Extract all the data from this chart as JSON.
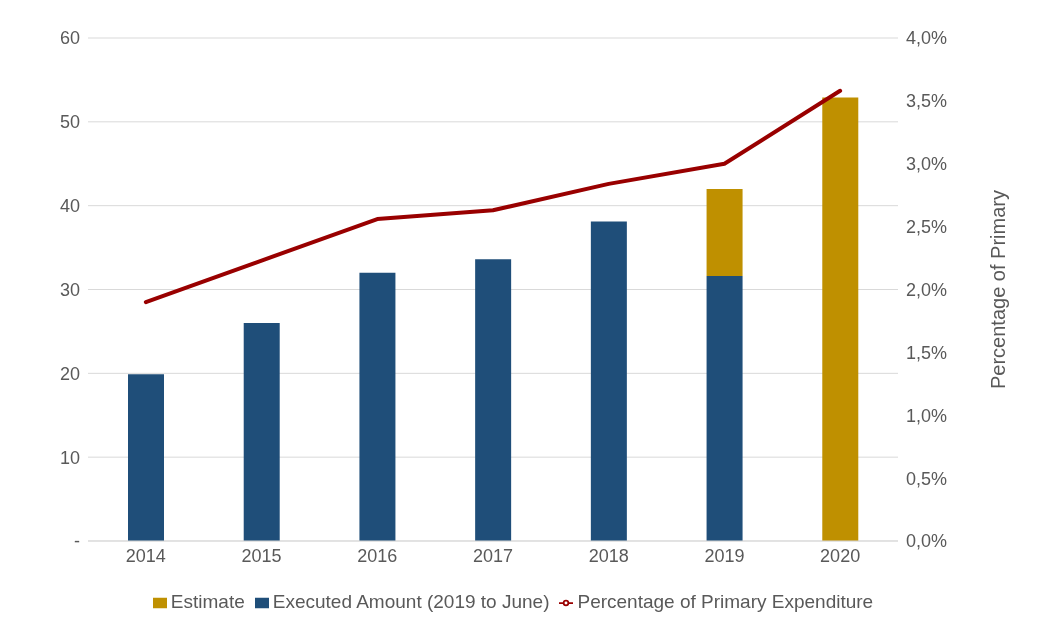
{
  "chart_data": {
    "type": "bar",
    "categories": [
      "2014",
      "2015",
      "2016",
      "2017",
      "2018",
      "2019",
      "2020"
    ],
    "stacked": true,
    "series": [
      {
        "name": "Executed Amount (2019 to June)",
        "color": "#1f4e79",
        "values": [
          19.9,
          26.0,
          32.0,
          33.6,
          38.1,
          31.6,
          null
        ]
      },
      {
        "name": "Estimate",
        "color": "#bf9000",
        "values": [
          null,
          null,
          null,
          null,
          null,
          10.4,
          52.9
        ]
      },
      {
        "name": "Percentage of Primary Expenditure",
        "type": "line",
        "axis": "y2",
        "color": "#990000",
        "values": [
          1.9,
          2.23,
          2.56,
          2.63,
          2.84,
          3.0,
          3.58
        ]
      }
    ],
    "ylim": [
      0,
      60
    ],
    "yticks": [
      {
        "value": 0,
        "label": "-"
      },
      10,
      20,
      30,
      40,
      50,
      60
    ],
    "y2lim": [
      0,
      4
    ],
    "y2ticks": [
      {
        "value": 0,
        "label": "0,0%"
      },
      {
        "value": 0.5,
        "label": "0,5%"
      },
      {
        "value": 1,
        "label": "1,0%"
      },
      {
        "value": 1.5,
        "label": "1,5%"
      },
      {
        "value": 2,
        "label": "2,0%"
      },
      {
        "value": 2.5,
        "label": "2,5%"
      },
      {
        "value": 3,
        "label": "3,0%"
      },
      {
        "value": 3.5,
        "label": "3,5%"
      },
      {
        "value": 4,
        "label": "4,0%"
      }
    ],
    "y2label": "Percentage of Primary",
    "grid": "y",
    "legend": "bottom",
    "marker": "none",
    "line_style": "solid"
  }
}
